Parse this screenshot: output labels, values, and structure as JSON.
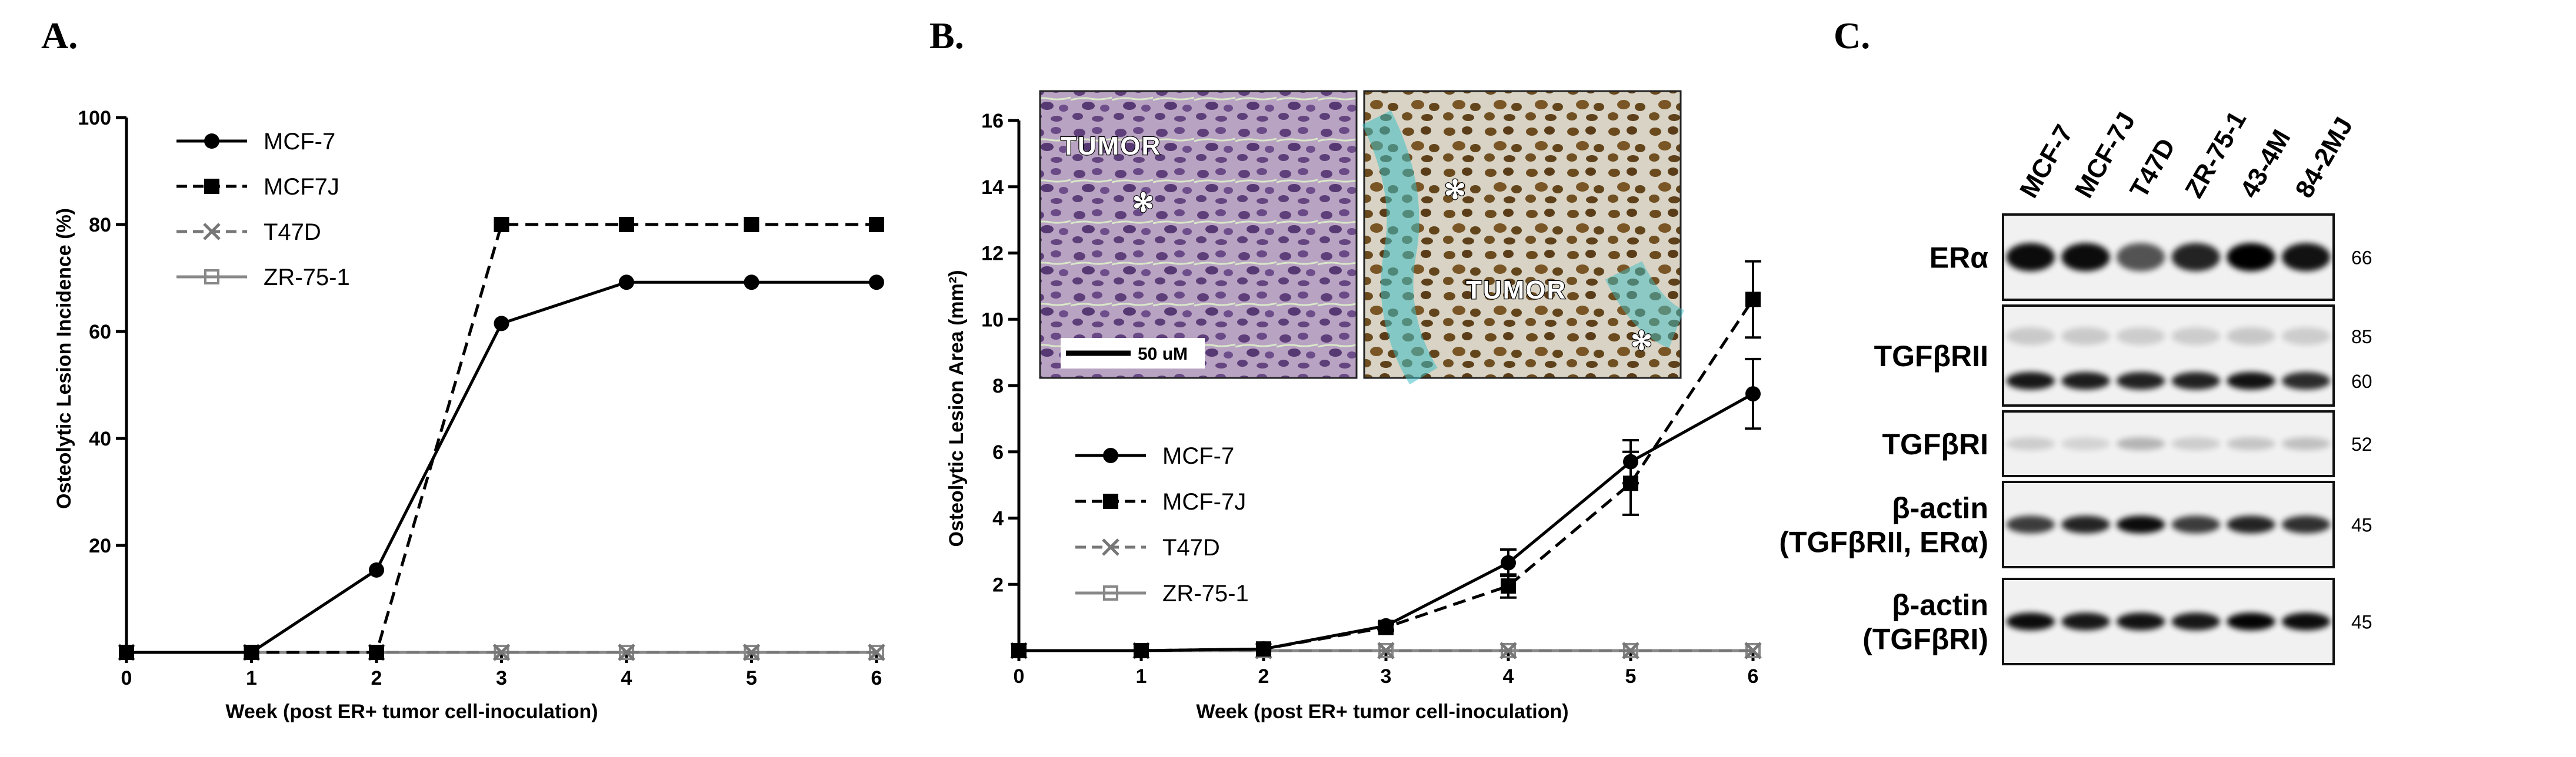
{
  "panels": {
    "a": {
      "letter": "A."
    },
    "b": {
      "letter": "B."
    },
    "c": {
      "letter": "C."
    }
  },
  "chart_data": [
    {
      "type": "line",
      "title": "",
      "xlabel": "Week (post ER+ tumor cell-inoculation)",
      "ylabel": "Osteolytic Lesion Incidence (%)",
      "x": [
        0,
        1,
        2,
        3,
        4,
        5,
        6
      ],
      "xlim": [
        0,
        6
      ],
      "ylim": [
        0,
        100
      ],
      "yticks": [
        20,
        40,
        60,
        80,
        100
      ],
      "xticks": [
        0,
        1,
        2,
        3,
        4,
        5,
        6
      ],
      "legend": "top-left",
      "series": [
        {
          "name": "MCF-7",
          "values": [
            0,
            0,
            15.4,
            61.5,
            69.2,
            69.2,
            69.2
          ],
          "marker": "circle",
          "line": "solid",
          "color": "#000000"
        },
        {
          "name": "MCF7J",
          "values": [
            0,
            0,
            0,
            80,
            80,
            80,
            80
          ],
          "marker": "square",
          "line": "dashed",
          "color": "#000000"
        },
        {
          "name": "T47D",
          "values": [
            0,
            0,
            0,
            0,
            0,
            0,
            0
          ],
          "marker": "x",
          "line": "dashed",
          "color": "#777777"
        },
        {
          "name": "ZR-75-1",
          "values": [
            0,
            0,
            0,
            0,
            0,
            0,
            0
          ],
          "marker": "open-square",
          "line": "solid",
          "color": "#888888"
        }
      ]
    },
    {
      "type": "line",
      "title": "",
      "xlabel": "Week (post ER+ tumor cell-inoculation)",
      "ylabel": "Osteolytic Lesion Area (mm²)",
      "x": [
        0,
        1,
        2,
        3,
        4,
        5,
        6
      ],
      "xlim": [
        0,
        6
      ],
      "ylim": [
        0,
        16
      ],
      "yticks": [
        2,
        4,
        6,
        8,
        10,
        12,
        14,
        16
      ],
      "xticks": [
        0,
        1,
        2,
        3,
        4,
        5,
        6
      ],
      "legend": "left",
      "series": [
        {
          "name": "MCF-7",
          "values": [
            0,
            0,
            0.05,
            0.75,
            2.65,
            5.7,
            7.75
          ],
          "err": [
            0,
            0,
            0,
            0.12,
            0.4,
            0.65,
            1.05
          ],
          "marker": "circle",
          "line": "solid",
          "color": "#000000"
        },
        {
          "name": "MCF-7J",
          "values": [
            0,
            0,
            0.05,
            0.7,
            1.95,
            5.05,
            10.6
          ],
          "err": [
            0,
            0,
            0,
            0.1,
            0.35,
            0.95,
            1.15
          ],
          "marker": "square",
          "line": "dashed",
          "color": "#000000"
        },
        {
          "name": "T47D",
          "values": [
            0,
            0,
            0,
            0,
            0,
            0,
            0
          ],
          "err": [
            0,
            0,
            0,
            0,
            0,
            0,
            0
          ],
          "marker": "x",
          "line": "dashed",
          "color": "#777777"
        },
        {
          "name": "ZR-75-1",
          "values": [
            0,
            0,
            0,
            0,
            0,
            0,
            0
          ],
          "err": [
            0,
            0,
            0,
            0,
            0,
            0,
            0
          ],
          "marker": "open-square",
          "line": "solid",
          "color": "#888888"
        }
      ]
    }
  ],
  "inset": {
    "left_label": "TUMOR",
    "right_label": "TUMOR",
    "scale_bar": "50 uM",
    "asterisk": "✻",
    "left_stain_color": "#8a6a9a",
    "right_stain_color": "#6b4a20"
  },
  "blot": {
    "lanes": [
      "MCF-7",
      "MCF-7J",
      "T47D",
      "ZR-75-1",
      "43-4M",
      "84-2MJ"
    ],
    "rows": [
      {
        "label_lines": [
          "ERα"
        ],
        "mw": [
          "66"
        ],
        "intensity": [
          0.95,
          0.95,
          0.65,
          0.85,
          1.0,
          0.92
        ]
      },
      {
        "label_lines": [
          "TGFβRII"
        ],
        "mw": [
          "85",
          "60"
        ],
        "intensity": [
          0.9,
          0.88,
          0.86,
          0.86,
          0.92,
          0.82
        ]
      },
      {
        "label_lines": [
          "TGFβRI"
        ],
        "mw": [
          "52"
        ],
        "intensity": [
          0.15,
          0.12,
          0.25,
          0.15,
          0.18,
          0.2
        ]
      },
      {
        "label_lines": [
          "β-actin",
          "(TGFβRII, ERα)"
        ],
        "mw": [
          "45"
        ],
        "intensity": [
          0.75,
          0.85,
          0.95,
          0.75,
          0.85,
          0.8
        ]
      },
      {
        "label_lines": [
          "β-actin",
          "(TGFβRI)"
        ],
        "mw": [
          "45"
        ],
        "intensity": [
          0.95,
          0.9,
          0.92,
          0.9,
          0.98,
          0.95
        ]
      }
    ]
  }
}
